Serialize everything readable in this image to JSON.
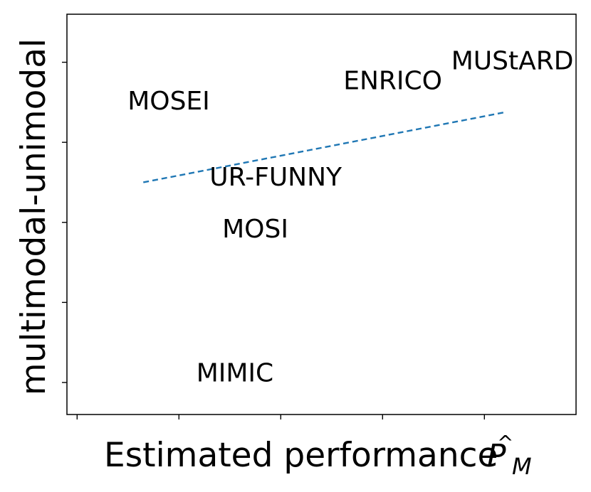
{
  "chart_data": {
    "type": "scatter",
    "title": "",
    "xlabel": "Estimated performance",
    "xlabel_math": {
      "symbol": "P",
      "accent": "^",
      "subscript": "M"
    },
    "ylabel": "multimodal-unimodal",
    "xlim": [
      0,
      10
    ],
    "ylim": [
      0,
      10
    ],
    "x_ticks": [
      0.2,
      2.2,
      4.2,
      6.2,
      8.2
    ],
    "y_ticks": [
      0.8,
      2.8,
      4.8,
      6.8,
      8.8
    ],
    "x_tick_labels_visible": false,
    "y_tick_labels_visible": false,
    "grid": false,
    "legend": "none",
    "points": [
      {
        "label": "MUStARD",
        "x": 8.75,
        "y": 8.8
      },
      {
        "label": "ENRICO",
        "x": 6.4,
        "y": 8.3
      },
      {
        "label": "MOSEI",
        "x": 2.0,
        "y": 7.8
      },
      {
        "label": "UR-FUNNY",
        "x": 4.1,
        "y": 5.9
      },
      {
        "label": "MOSI",
        "x": 3.7,
        "y": 4.6
      },
      {
        "label": "MIMIC",
        "x": 3.3,
        "y": 1.0
      }
    ],
    "trendline": {
      "style": "dashed",
      "color": "#1f77b4",
      "x": [
        1.5,
        8.6
      ],
      "y": [
        5.8,
        7.55
      ]
    }
  }
}
